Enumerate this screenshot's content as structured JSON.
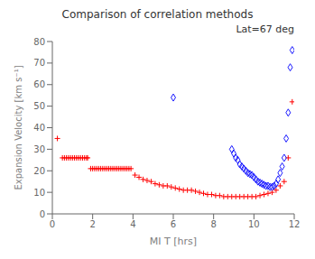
{
  "chart_data": {
    "type": "scatter",
    "title": "Comparison of correlation methods",
    "subtitle": "Lat=67 deg",
    "xlabel": "MI T [hrs]",
    "ylabel": "Expansion Velocity [km s⁻¹]",
    "xlim": [
      0,
      12
    ],
    "ylim": [
      0,
      80
    ],
    "xticks": [
      0,
      2,
      4,
      6,
      8,
      10,
      12
    ],
    "yticks": [
      0,
      10,
      20,
      30,
      40,
      50,
      60,
      70,
      80
    ],
    "grid": false,
    "series": [
      {
        "color": "red",
        "marker": "plus",
        "x": [
          0.25,
          0.5,
          0.6,
          0.7,
          0.8,
          0.9,
          1.0,
          1.1,
          1.2,
          1.3,
          1.4,
          1.5,
          1.6,
          1.7,
          1.75,
          1.9,
          2.0,
          2.1,
          2.2,
          2.3,
          2.4,
          2.5,
          2.6,
          2.7,
          2.8,
          2.9,
          3.0,
          3.1,
          3.2,
          3.3,
          3.4,
          3.5,
          3.6,
          3.7,
          3.8,
          3.9,
          4.1,
          4.3,
          4.5,
          4.7,
          4.9,
          5.1,
          5.3,
          5.5,
          5.7,
          5.9,
          6.1,
          6.3,
          6.5,
          6.7,
          6.9,
          7.1,
          7.3,
          7.5,
          7.7,
          7.9,
          8.1,
          8.3,
          8.5,
          8.7,
          8.9,
          9.1,
          9.3,
          9.5,
          9.7,
          9.9,
          10.1,
          10.3,
          10.5,
          10.7,
          10.9,
          11.1,
          11.3,
          11.5,
          11.7,
          11.9
        ],
        "values": [
          35,
          26,
          26,
          26,
          26,
          26,
          26,
          26,
          26,
          26,
          26,
          26,
          26,
          26,
          26,
          21,
          21,
          21,
          21,
          21,
          21,
          21,
          21,
          21,
          21,
          21,
          21,
          21,
          21,
          21,
          21,
          21,
          21,
          21,
          21,
          21,
          18,
          17,
          16,
          15.5,
          15,
          14,
          13.5,
          13,
          13,
          12.5,
          12,
          11.5,
          11,
          11,
          11,
          10.5,
          10,
          9.5,
          9,
          9,
          8.5,
          8.5,
          8,
          8,
          8,
          8,
          8,
          8,
          8,
          8,
          8,
          8.5,
          9,
          9.5,
          10,
          11,
          13,
          15,
          26,
          52
        ]
      },
      {
        "color": "blue",
        "marker": "diamond",
        "x": [
          6.0,
          8.9,
          9.0,
          9.1,
          9.2,
          9.3,
          9.4,
          9.5,
          9.6,
          9.7,
          9.8,
          9.9,
          10.0,
          10.1,
          10.2,
          10.3,
          10.4,
          10.5,
          10.6,
          10.7,
          10.8,
          10.9,
          11.0,
          11.1,
          11.2,
          11.3,
          11.4,
          11.5,
          11.6,
          11.7,
          11.8,
          11.9
        ],
        "values": [
          54,
          30,
          28,
          26,
          25,
          23,
          22,
          21,
          20,
          19,
          18.5,
          18,
          17,
          16,
          15,
          14.5,
          14,
          13.5,
          13,
          13,
          12.5,
          12.5,
          13,
          14,
          16,
          19,
          22,
          26,
          35,
          47,
          68,
          76
        ]
      }
    ]
  }
}
